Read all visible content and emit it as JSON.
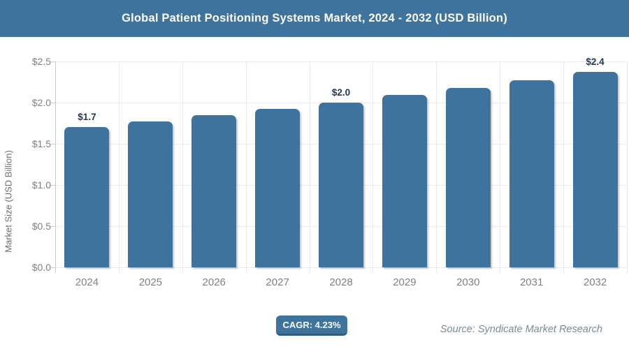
{
  "header": {
    "title": "Global Patient Positioning Systems Market, 2024 - 2032 (USD Billion)",
    "bg_color": "#3E739D",
    "text_color": "#FFFFFF"
  },
  "chart_data": {
    "type": "bar",
    "title": "Global Patient Positioning Systems Market, 2024 - 2032 (USD Billion)",
    "categories": [
      "2024",
      "2025",
      "2026",
      "2027",
      "2028",
      "2029",
      "2030",
      "2031",
      "2032"
    ],
    "values": [
      1.7,
      1.77,
      1.85,
      1.92,
      2.0,
      2.09,
      2.18,
      2.27,
      2.37
    ],
    "bar_labels": [
      "$1.7",
      null,
      null,
      null,
      "$2.0",
      null,
      null,
      null,
      "$2.4"
    ],
    "xlabel": "",
    "ylabel": "Market Size (USD Billion)",
    "ylim": [
      0,
      2.5
    ],
    "ytick_values": [
      0,
      0.5,
      1.0,
      1.5,
      2.0,
      2.5
    ],
    "ytick_labels": [
      "$0.0",
      "$0.5",
      "$1.0",
      "$1.5",
      "$2.0",
      "$2.5"
    ],
    "grid": true,
    "legend": false,
    "bar_color": "#3E739D",
    "bar_label_color": "#26374F"
  },
  "footer": {
    "cagr_label": "CAGR: 4.23%",
    "badge_color": "#3E739D",
    "source": "Source: Syndicate Market Research"
  }
}
